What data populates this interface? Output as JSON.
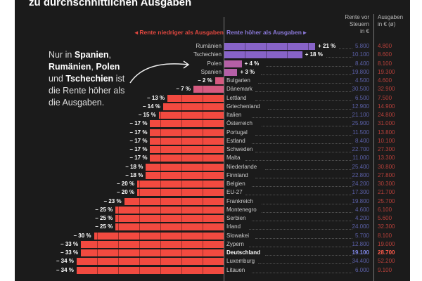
{
  "title": "zu durchschnittlichen Ausgaben",
  "headers": {
    "rente": [
      "Rente vor",
      "Steuern",
      "in €"
    ],
    "ausgaben": [
      "Ausgaben",
      "in € (ø)"
    ]
  },
  "legend": {
    "negative": "◂  Rente niedriger als Ausgaben",
    "positive": "Rente höher als Ausgaben  ▸"
  },
  "annotation": {
    "parts": [
      [
        "Nur in ",
        false
      ],
      [
        "Spanien",
        true
      ],
      [
        ", ",
        false
      ],
      [
        "Rumänien",
        true
      ],
      [
        ", ",
        false
      ],
      [
        "Polen",
        true
      ],
      [
        " und ",
        false
      ],
      [
        "Tschechien",
        true
      ],
      [
        " ist die Rente höher als die Ausgaben.",
        false
      ]
    ]
  },
  "colors": {
    "purple": "#8763c8",
    "magenta": "#b55fa6",
    "pink": "#d65a80",
    "red": "#f24a40",
    "rente": "#5b60a8",
    "ausgaben": "#b8403a"
  },
  "chart_data": {
    "type": "bar",
    "orientation": "horizontal",
    "unit": "%",
    "columns": [
      "Rente vor Steuern in €",
      "Ausgaben in € (ø)"
    ],
    "rows": [
      {
        "country": "Rumänien",
        "pct": 21,
        "label": "+ 21 %",
        "rente": "5.800",
        "ausgaben": "4.800",
        "color": "purple"
      },
      {
        "country": "Tschechien",
        "pct": 18,
        "label": "+ 18 %",
        "rente": "10.100",
        "ausgaben": "8.600",
        "color": "purple"
      },
      {
        "country": "Polen",
        "pct": 4,
        "label": "+ 4 %",
        "rente": "8.400",
        "ausgaben": "8.100",
        "color": "magenta"
      },
      {
        "country": "Spanien",
        "pct": 3,
        "label": "+ 3 %",
        "rente": "19.800",
        "ausgaben": "19.300",
        "color": "magenta"
      },
      {
        "country": "Bulgarien",
        "pct": -2,
        "label": "– 2 %",
        "rente": "4.500",
        "ausgaben": "4.600",
        "color": "pink"
      },
      {
        "country": "Dänemark",
        "pct": -7,
        "label": "– 7 %",
        "rente": "30.500",
        "ausgaben": "32.900",
        "color": "pink"
      },
      {
        "country": "Lettland",
        "pct": -13,
        "label": "– 13 %",
        "rente": "6.500",
        "ausgaben": "7.500",
        "color": "red"
      },
      {
        "country": "Griechenland",
        "pct": -14,
        "label": "– 14 %",
        "rente": "12.900",
        "ausgaben": "14.900",
        "color": "red"
      },
      {
        "country": "Italien",
        "pct": -15,
        "label": "– 15 %",
        "rente": "21.100",
        "ausgaben": "24.800",
        "color": "red"
      },
      {
        "country": "Österreich",
        "pct": -17,
        "label": "– 17 %",
        "rente": "25.900",
        "ausgaben": "31.000",
        "color": "red"
      },
      {
        "country": "Portugal",
        "pct": -17,
        "label": "– 17 %",
        "rente": "11.500",
        "ausgaben": "13.800",
        "color": "red"
      },
      {
        "country": "Estland",
        "pct": -17,
        "label": "– 17 %",
        "rente": "8.400",
        "ausgaben": "10.100",
        "color": "red"
      },
      {
        "country": "Schweden",
        "pct": -17,
        "label": "– 17 %",
        "rente": "22.700",
        "ausgaben": "27.300",
        "color": "red"
      },
      {
        "country": "Malta",
        "pct": -17,
        "label": "– 17 %",
        "rente": "11.000",
        "ausgaben": "13.300",
        "color": "red"
      },
      {
        "country": "Niederlande",
        "pct": -18,
        "label": "– 18 %",
        "rente": "25.400",
        "ausgaben": "30.800",
        "color": "red"
      },
      {
        "country": "Finnland",
        "pct": -18,
        "label": "– 18 %",
        "rente": "22.800",
        "ausgaben": "27.800",
        "color": "red"
      },
      {
        "country": "Belgien",
        "pct": -20,
        "label": "– 20 %",
        "rente": "24.200",
        "ausgaben": "30.300",
        "color": "red"
      },
      {
        "country": "EU-27",
        "pct": -20,
        "label": "– 20 %",
        "rente": "17.300",
        "ausgaben": "21.700",
        "color": "red"
      },
      {
        "country": "Frankreich",
        "pct": -23,
        "label": "– 23 %",
        "rente": "19.800",
        "ausgaben": "25.700",
        "color": "red"
      },
      {
        "country": "Montenegro",
        "pct": -25,
        "label": "– 25 %",
        "rente": "4.600",
        "ausgaben": "6.100",
        "color": "red"
      },
      {
        "country": "Serbien",
        "pct": -25,
        "label": "– 25 %",
        "rente": "4.200",
        "ausgaben": "5.600",
        "color": "red"
      },
      {
        "country": "Irland",
        "pct": -25,
        "label": "– 25 %",
        "rente": "24.000",
        "ausgaben": "32.300",
        "color": "red"
      },
      {
        "country": "Slowakei",
        "pct": -30,
        "label": "– 30 %",
        "rente": "5.700",
        "ausgaben": "8.100",
        "color": "red"
      },
      {
        "country": "Zypern",
        "pct": -33,
        "label": "– 33 %",
        "rente": "12.800",
        "ausgaben": "19.000",
        "color": "red"
      },
      {
        "country": "Deutschland",
        "pct": -33,
        "label": "– 33 %",
        "rente": "19.100",
        "ausgaben": "28.700",
        "color": "red",
        "highlight": true
      },
      {
        "country": "Luxemburg",
        "pct": -34,
        "label": "– 34 %",
        "rente": "34.400",
        "ausgaben": "52.200",
        "color": "red"
      },
      {
        "country": "Litauen",
        "pct": -34,
        "label": "– 34 %",
        "rente": "6.000",
        "ausgaben": "9.100",
        "color": "red"
      }
    ]
  }
}
